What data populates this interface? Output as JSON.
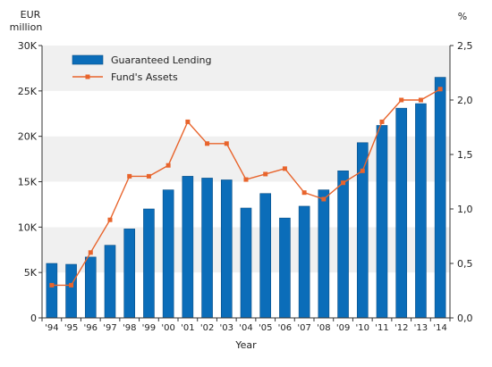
{
  "chart_data": {
    "type": "bar",
    "xlabel": "Year",
    "y_left_label": [
      "EUR",
      "million"
    ],
    "y_right_label": "%",
    "categories": [
      "'94",
      "'95",
      "'96",
      "'97",
      "'98",
      "'99",
      "'00",
      "'01",
      "'02",
      "'03",
      "'04",
      "'05",
      "'06",
      "'07",
      "'08",
      "'09",
      "'10",
      "'11",
      "'12",
      "'13",
      "'14"
    ],
    "left_axis": {
      "range": [
        0,
        30000
      ],
      "ticks": [
        0,
        5000,
        10000,
        15000,
        20000,
        25000,
        30000
      ],
      "tick_labels": [
        "0",
        "5K",
        "10K",
        "15K",
        "20K",
        "25K",
        "30K"
      ]
    },
    "right_axis": {
      "range": [
        0,
        2.5
      ],
      "ticks": [
        0,
        0.5,
        1,
        1.5,
        2,
        2.5
      ],
      "tick_labels": [
        "0,0",
        "0,5",
        "1,0",
        "1,5",
        "2,0",
        "2,5"
      ]
    },
    "series": [
      {
        "name": "Guaranteed Lending",
        "kind": "bar",
        "axis": "left",
        "color": "#0b6db9",
        "values": [
          6000,
          5900,
          6700,
          8000,
          9800,
          12000,
          14100,
          15600,
          15400,
          15200,
          12100,
          13700,
          11000,
          12300,
          14100,
          16200,
          19300,
          21200,
          23100,
          23600,
          26500
        ]
      },
      {
        "name": "Fund's Assets",
        "kind": "line",
        "axis": "right",
        "color": "#e8642c",
        "values": [
          0.3,
          0.3,
          0.6,
          0.9,
          1.3,
          1.3,
          1.4,
          1.8,
          1.6,
          1.6,
          1.27,
          1.32,
          1.37,
          1.15,
          1.09,
          1.24,
          1.35,
          1.8,
          2.0,
          2.0,
          2.1
        ]
      }
    ],
    "grid": "alternating bands",
    "legend_position": "top-left"
  }
}
